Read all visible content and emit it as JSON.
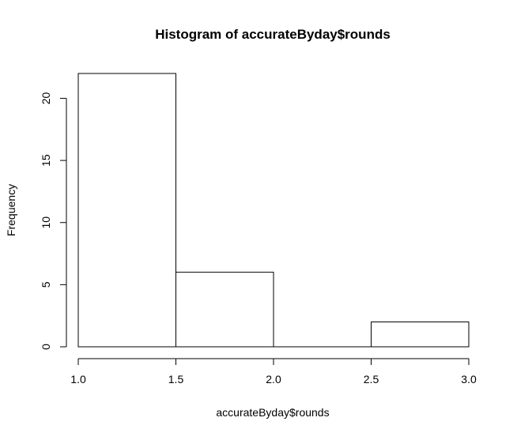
{
  "chart_data": {
    "type": "bar",
    "title": "Histogram of accurateByday$rounds",
    "xlabel": "accurateByday$rounds",
    "ylabel": "Frequency",
    "bins": [
      {
        "start": 1.0,
        "end": 1.5,
        "value": 22
      },
      {
        "start": 1.5,
        "end": 2.0,
        "value": 6
      },
      {
        "start": 2.0,
        "end": 2.5,
        "value": 0
      },
      {
        "start": 2.5,
        "end": 3.0,
        "value": 2
      }
    ],
    "xlim": [
      1.0,
      3.0
    ],
    "ylim": [
      0,
      22
    ],
    "x_ticks": [
      "1.0",
      "1.5",
      "2.0",
      "2.5",
      "3.0"
    ],
    "y_ticks": [
      "0",
      "5",
      "10",
      "15",
      "20"
    ],
    "grid": false,
    "colors": {
      "bar_fill": "#ffffff",
      "bar_stroke": "#000000",
      "axis": "#000000",
      "background": "#ffffff"
    }
  }
}
